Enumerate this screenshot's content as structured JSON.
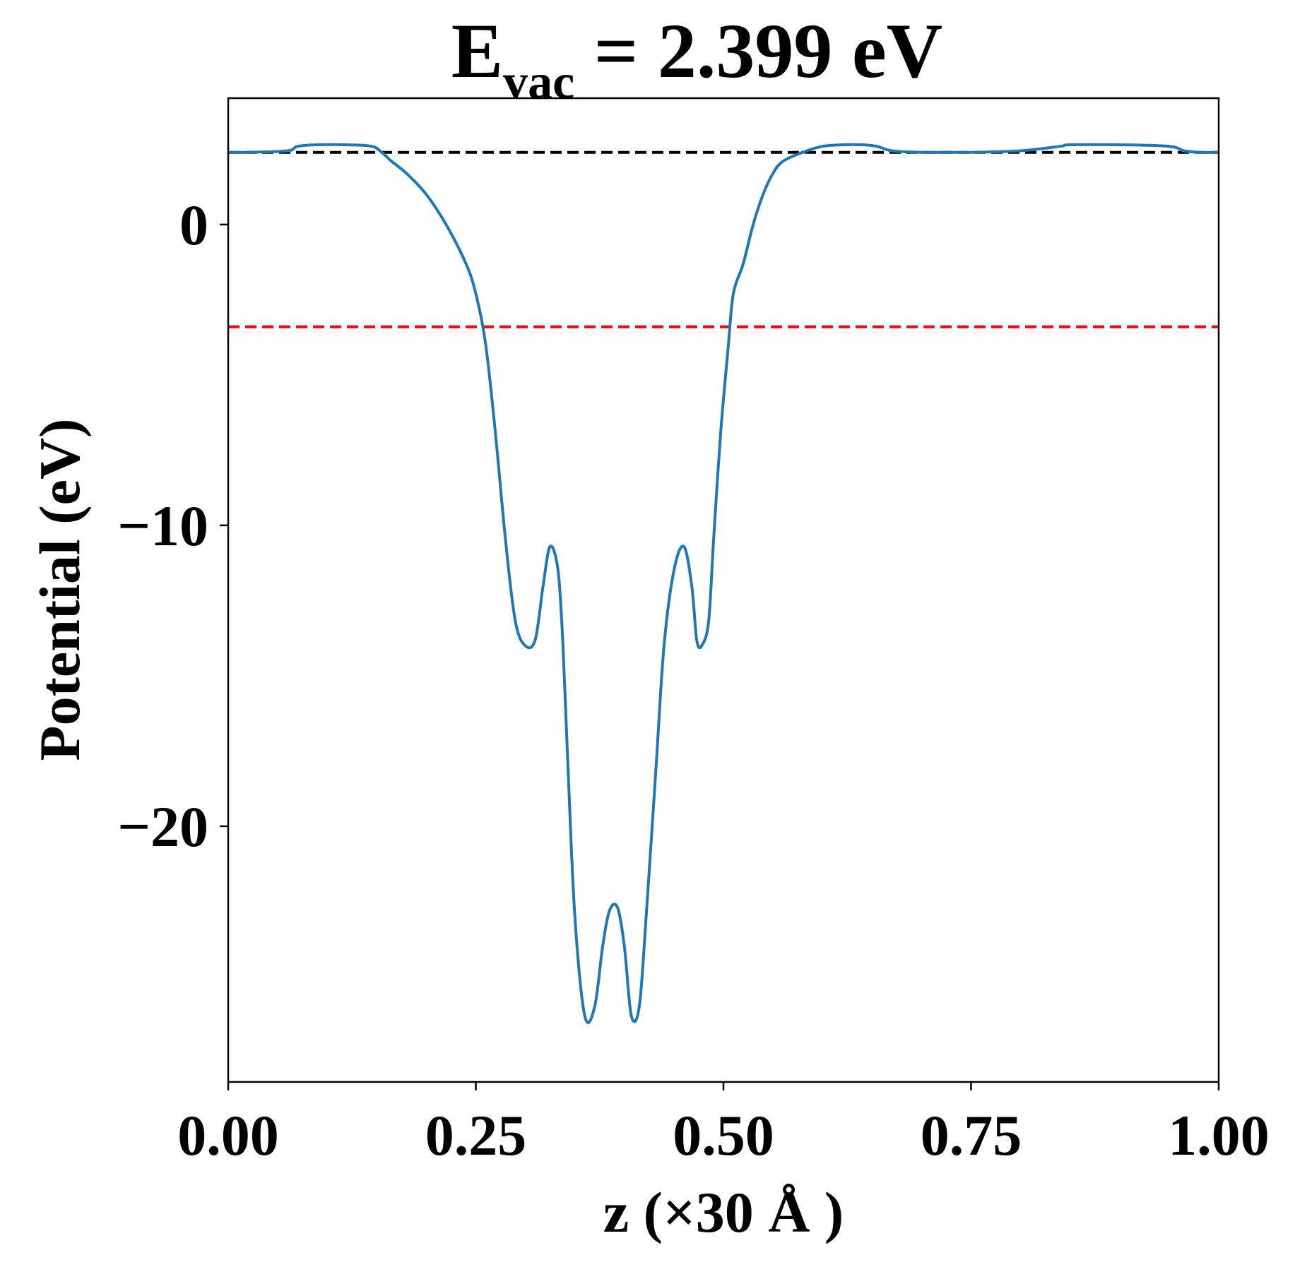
{
  "chart_data": {
    "type": "line",
    "title": {
      "main": "E",
      "subscript": "vac",
      "rest": " = 2.399 eV"
    },
    "xlabel": "z (×30 Å )",
    "ylabel": "Potential (eV)",
    "xlim": [
      0.0,
      1.0
    ],
    "ylim": [
      -28.5,
      4.2
    ],
    "x_ticks": [
      0.0,
      0.25,
      0.5,
      0.75,
      1.0
    ],
    "x_tick_labels": [
      "0.00",
      "0.25",
      "0.50",
      "0.75",
      "1.00"
    ],
    "y_ticks": [
      0,
      -10,
      -20
    ],
    "y_tick_labels": [
      "0",
      "−10",
      "−20"
    ],
    "grid": false,
    "series": [
      {
        "color": "#1f77b4",
        "x": [
          0.0,
          0.02,
          0.06,
          0.07,
          0.09,
          0.12,
          0.145,
          0.155,
          0.165,
          0.18,
          0.2,
          0.22,
          0.24,
          0.25,
          0.26,
          0.27,
          0.28,
          0.29,
          0.3,
          0.31,
          0.318,
          0.325,
          0.333,
          0.338,
          0.343,
          0.35,
          0.36,
          0.37,
          0.378,
          0.385,
          0.393,
          0.4,
          0.407,
          0.415,
          0.422,
          0.432,
          0.44,
          0.45,
          0.46,
          0.468,
          0.473,
          0.478,
          0.485,
          0.49,
          0.497,
          0.505,
          0.51,
          0.52,
          0.53,
          0.54,
          0.55,
          0.56,
          0.58,
          0.6,
          0.62,
          0.64,
          0.655,
          0.67,
          0.7,
          0.73,
          0.75,
          0.8,
          0.84,
          0.85,
          0.9,
          0.95,
          0.965,
          0.98,
          1.0
        ],
        "y": [
          2.4,
          2.4,
          2.45,
          2.6,
          2.65,
          2.65,
          2.6,
          2.4,
          2.1,
          1.7,
          1.0,
          0.0,
          -1.3,
          -2.3,
          -4.0,
          -7.0,
          -10.5,
          -13.2,
          -14.0,
          -13.8,
          -12.0,
          -10.7,
          -11.5,
          -14.0,
          -18.0,
          -23.0,
          -26.3,
          -26.0,
          -24.0,
          -22.8,
          -22.7,
          -24.0,
          -26.3,
          -26.0,
          -23.0,
          -18.0,
          -14.0,
          -11.5,
          -10.7,
          -12.0,
          -13.8,
          -14.0,
          -13.2,
          -10.5,
          -7.0,
          -4.0,
          -2.3,
          -1.3,
          0.0,
          1.0,
          1.7,
          2.1,
          2.4,
          2.6,
          2.65,
          2.65,
          2.6,
          2.45,
          2.4,
          2.4,
          2.4,
          2.45,
          2.6,
          2.65,
          2.65,
          2.6,
          2.45,
          2.4,
          2.4
        ]
      }
    ],
    "hlines": [
      {
        "y": 2.399,
        "color": "#000000",
        "style": "dashed"
      },
      {
        "y": -3.4,
        "color": "#ff0000",
        "style": "dashed"
      }
    ]
  }
}
